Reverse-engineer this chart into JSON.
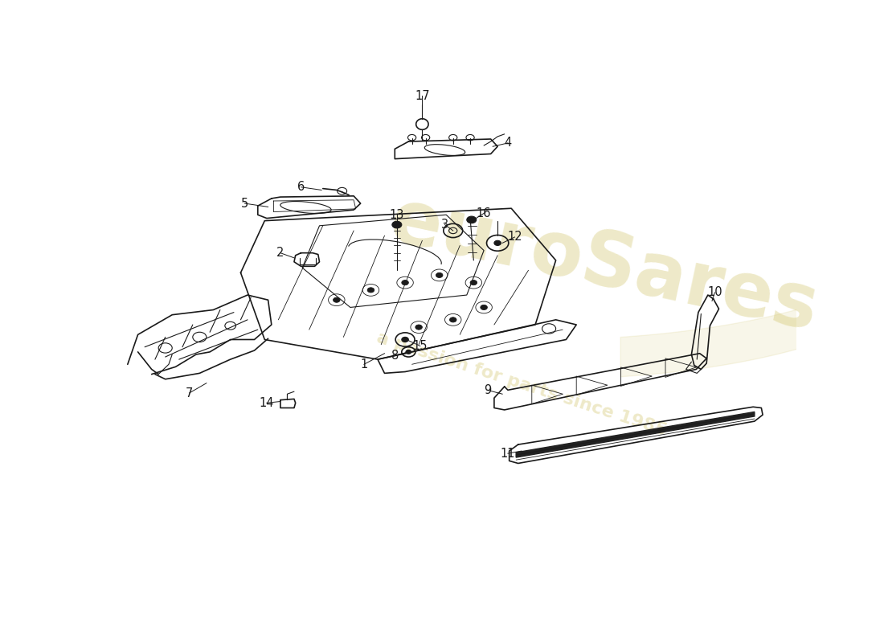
{
  "bg_color": "#ffffff",
  "line_color": "#1a1a1a",
  "watermark_text1": "euroSares",
  "watermark_text2": "a passion for parts since 1985",
  "watermark_color": "#c8b84a",
  "watermark_alpha": 0.3,
  "font_size": 10.5
}
